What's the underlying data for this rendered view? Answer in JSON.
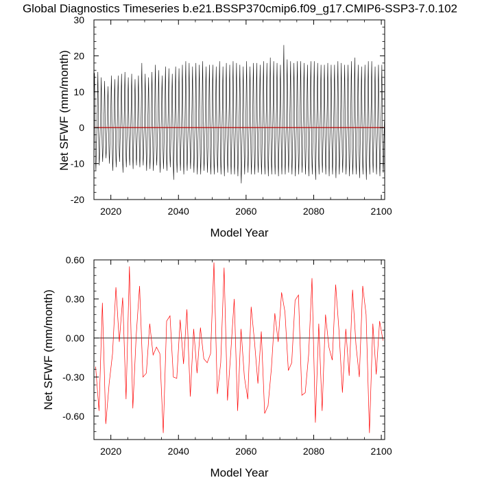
{
  "page_title": "Global Diagnostics Timeseries b.e21.BSSP370cmip6.f09_g17.CMIP6-SSP3-7.0.102",
  "colors": {
    "monthly_line": "#000000",
    "annual_line": "#ff0000",
    "zero_line": "#000000",
    "mean_line": "#cc0000"
  },
  "chart_data": [
    {
      "type": "line",
      "xlabel": "Model Year",
      "ylabel": "Net SFWF (mm/month)",
      "xlim": [
        2015,
        2101
      ],
      "ylim": [
        -20,
        30
      ],
      "xticks": [
        2020,
        2040,
        2060,
        2080,
        2100
      ],
      "yticks": [
        -20,
        -10,
        0,
        10,
        20,
        30
      ],
      "ytick_labels": [
        "-20",
        "-10",
        "0",
        "10",
        "20",
        "30"
      ],
      "grid": false,
      "series": [
        {
          "style": "monthly",
          "x_start": 2015,
          "annual_peaks": [
            15.2,
            15.5,
            14.0,
            13.0,
            11.5,
            14.5,
            13.5,
            14.5,
            15.0,
            15.5,
            14.0,
            15.0,
            13.5,
            14.5,
            18.0,
            15.0,
            14.0,
            15.5,
            17.5,
            16.0,
            14.5,
            17.0,
            16.5,
            15.0,
            17.0,
            16.5,
            17.5,
            18.5,
            18.0,
            17.0,
            18.0,
            17.5,
            18.5,
            17.0,
            17.5,
            17.5,
            17.0,
            18.5,
            17.0,
            18.0,
            17.5,
            18.5,
            18.0,
            17.5,
            17.0,
            18.5,
            17.0,
            18.0,
            18.0,
            17.5,
            18.5,
            18.0,
            19.5,
            18.5,
            18.0,
            17.5,
            23.0,
            19.0,
            18.5,
            18.0,
            18.5,
            18.5,
            18.0,
            17.5,
            18.5,
            18.5,
            18.0,
            17.5,
            17.5,
            18.0,
            17.5,
            17.5,
            18.5,
            18.0,
            17.5,
            17.5,
            18.5,
            19.5,
            17.5,
            17.0,
            17.5,
            18.5,
            18.5,
            17.0,
            17.5,
            17.5
          ],
          "annual_troughs": [
            -12.0,
            -10.5,
            -9.5,
            -8.5,
            -10.0,
            -12.0,
            -11.0,
            -9.5,
            -12.5,
            -11.0,
            -10.5,
            -11.5,
            -10.5,
            -11.0,
            -10.5,
            -12.0,
            -11.5,
            -12.0,
            -10.5,
            -12.5,
            -11.5,
            -12.0,
            -11.0,
            -14.5,
            -12.5,
            -12.0,
            -13.0,
            -12.0,
            -11.5,
            -12.5,
            -13.0,
            -13.0,
            -12.0,
            -12.5,
            -13.0,
            -13.0,
            -12.5,
            -13.0,
            -13.5,
            -12.5,
            -13.0,
            -13.0,
            -13.5,
            -15.5,
            -13.0,
            -12.5,
            -13.0,
            -13.0,
            -12.5,
            -13.0,
            -13.0,
            -13.5,
            -13.0,
            -13.0,
            -13.5,
            -13.0,
            -13.0,
            -12.5,
            -13.0,
            -13.5,
            -13.0,
            -12.5,
            -13.0,
            -13.5,
            -13.0,
            -14.5,
            -13.0,
            -12.5,
            -13.0,
            -13.5,
            -13.0,
            -14.0,
            -13.0,
            -12.5,
            -13.0,
            -13.5,
            -13.0,
            -13.0,
            -14.0,
            -13.0,
            -14.5,
            -13.0,
            -12.5,
            -13.0,
            -13.5,
            -12.5
          ]
        },
        {
          "style": "mean",
          "values": [
            0.05,
            0.05
          ]
        }
      ],
      "annotations": []
    },
    {
      "type": "line",
      "xlabel": "Model Year",
      "ylabel": "Net SFWF (mm/month)",
      "xlim": [
        2015,
        2101
      ],
      "ylim": [
        -0.78,
        0.6
      ],
      "xticks": [
        2020,
        2040,
        2060,
        2080,
        2100
      ],
      "yticks": [
        -0.6,
        -0.3,
        0.0,
        0.3,
        0.6
      ],
      "ytick_labels": [
        "-0.60",
        "-0.30",
        "0.00",
        "0.30",
        "0.60"
      ],
      "grid": false,
      "series": [
        {
          "style": "annual",
          "x_start": 2015,
          "values": [
            -0.22,
            -0.56,
            0.27,
            -0.66,
            -0.35,
            -0.12,
            0.39,
            -0.03,
            0.31,
            -0.47,
            0.55,
            -0.54,
            0.02,
            0.4,
            -0.3,
            -0.27,
            0.11,
            -0.13,
            -0.07,
            -0.12,
            -0.73,
            0.13,
            0.17,
            -0.3,
            -0.31,
            0.14,
            -0.2,
            0.22,
            -0.45,
            0.07,
            -0.27,
            0.08,
            -0.16,
            -0.19,
            -0.12,
            0.58,
            -0.43,
            -0.19,
            0.54,
            -0.48,
            -0.1,
            0.3,
            -0.56,
            0.07,
            -0.3,
            -0.47,
            0.24,
            -0.03,
            -0.35,
            0.05,
            -0.58,
            -0.52,
            -0.23,
            0.19,
            -0.03,
            0.35,
            0.2,
            -0.25,
            -0.19,
            0.29,
            0.33,
            -0.44,
            -0.42,
            -0.13,
            0.46,
            -0.65,
            0.11,
            -0.56,
            0.18,
            -0.07,
            -0.17,
            0.41,
            0.05,
            -0.42,
            0.07,
            -0.29,
            0.37,
            -0.05,
            -0.3,
            0.4,
            0.18,
            -0.73,
            0.11,
            -0.28,
            0.13,
            -0.02
          ]
        }
      ],
      "annotations": []
    }
  ]
}
